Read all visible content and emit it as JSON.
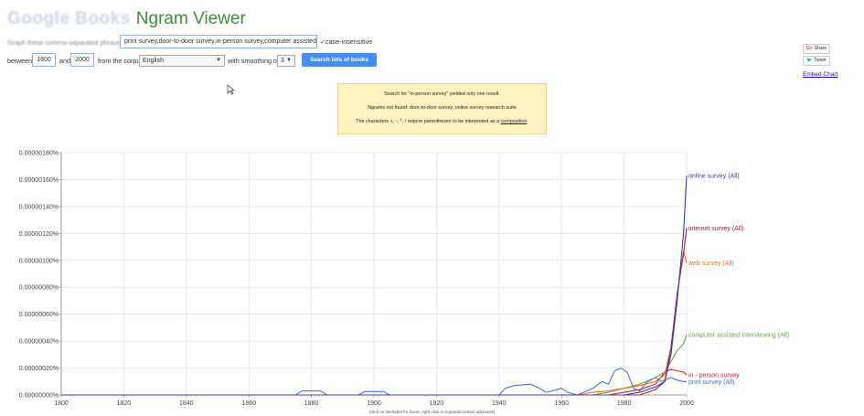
{
  "header": {
    "brand": "Google Books",
    "title": "Ngram Viewer"
  },
  "form": {
    "phrases_label": "Graph these comma-separated phrases:",
    "phrases_value": "print survey,door-to-door survey,in-person survey,computer assisted",
    "case_insensitive_label": "case-insensitive",
    "case_insensitive_checked": true,
    "between_label": "between",
    "year_start": "1800",
    "and_label": "and",
    "year_end": "2000",
    "corpus_label": "from the corpus",
    "corpus_value": "English",
    "smoothing_label": "with smoothing of",
    "smoothing_value": "3",
    "search_button": "Search lots of books"
  },
  "share": {
    "gplus": "Share",
    "tweet": "Tweet",
    "embed": "Embed Chart"
  },
  "notice": {
    "line1": "Search for \"in-person survey\" yielded only one result.",
    "line2": "Ngrams not found: door-to-door survey, online survey research suite",
    "line3_prefix": "The characters +, -, *, / require parentheses to be interpreted as a",
    "line3_link": "composition",
    "line3_suffix": "."
  },
  "footnote": "(click on line/label for focus, right click to expand/contract wildcards)",
  "colors": {
    "online": "#3b3bbd",
    "internet": "#a0203b",
    "web": "#ef6d24",
    "computer": "#6ba546",
    "inperson": "#cc2222",
    "print": "#4a73e3",
    "grid": "#e4e4e4",
    "axis": "#888888"
  },
  "chart_data": {
    "type": "line",
    "xlim": [
      1800,
      2000
    ],
    "ylim": [
      0,
      1.8e-08
    ],
    "x_ticks": [
      "1800",
      "1820",
      "1840",
      "1860",
      "1880",
      "1900",
      "1920",
      "1940",
      "1960",
      "1980",
      "2000"
    ],
    "y_ticks": [
      "0.00000000%",
      "0.00000020%",
      "0.00000040%",
      "0.00000060%",
      "0.00000080%",
      "0.00000100%",
      "0.00000120%",
      "0.00000140%",
      "0.00000160%",
      "0.00000180%"
    ],
    "grid": true,
    "series": [
      {
        "name": "online survey (All)",
        "color_key": "online",
        "label_y": 1.63e-08,
        "points": [
          [
            1800,
            0
          ],
          [
            1980,
            0
          ],
          [
            1985,
            2e-10
          ],
          [
            1990,
            6e-10
          ],
          [
            1993,
            1e-09
          ],
          [
            1995,
            3e-09
          ],
          [
            1997,
            7e-09
          ],
          [
            1999,
            1.2e-08
          ],
          [
            2000,
            1.63e-08
          ]
        ]
      },
      {
        "name": "internet survey (All)",
        "color_key": "internet",
        "label_y": 1.24e-08,
        "points": [
          [
            1800,
            0
          ],
          [
            1985,
            0
          ],
          [
            1990,
            4e-10
          ],
          [
            1993,
            1e-09
          ],
          [
            1995,
            3.5e-09
          ],
          [
            1997,
            7.5e-09
          ],
          [
            1999,
            1.05e-08
          ],
          [
            2000,
            1.24e-08
          ]
        ]
      },
      {
        "name": "web survey (All)",
        "color_key": "web",
        "label_y": 9.8e-09,
        "points": [
          [
            1800,
            0
          ],
          [
            1965,
            0
          ],
          [
            1970,
            2e-10
          ],
          [
            1975,
            3e-10
          ],
          [
            1980,
            5e-10
          ],
          [
            1985,
            7e-10
          ],
          [
            1990,
            1e-09
          ],
          [
            1993,
            1.5e-09
          ],
          [
            1995,
            3.5e-09
          ],
          [
            1997,
            7.5e-09
          ],
          [
            1999,
            1.07e-08
          ],
          [
            2000,
            9.8e-09
          ]
        ]
      },
      {
        "name": "computer assisted interviewing (All)",
        "color_key": "computer",
        "label_y": 4.5e-09,
        "points": [
          [
            1800,
            0
          ],
          [
            1970,
            0
          ],
          [
            1975,
            2e-10
          ],
          [
            1980,
            5e-10
          ],
          [
            1985,
            8e-10
          ],
          [
            1990,
            1.3e-09
          ],
          [
            1993,
            1.7e-09
          ],
          [
            1995,
            2.5e-09
          ],
          [
            1997,
            3.3e-09
          ],
          [
            1999,
            3.8e-09
          ],
          [
            2000,
            4.5e-09
          ]
        ]
      },
      {
        "name": "in - person survey",
        "color_key": "inperson",
        "label_y": 1.5e-09,
        "points": [
          [
            1800,
            0
          ],
          [
            1975,
            0
          ],
          [
            1980,
            2e-10
          ],
          [
            1985,
            4e-10
          ],
          [
            1990,
            8e-10
          ],
          [
            1993,
            1.7e-09
          ],
          [
            1995,
            1.9e-09
          ],
          [
            1997,
            1.8e-09
          ],
          [
            1999,
            1.7e-09
          ],
          [
            2000,
            1.5e-09
          ]
        ]
      },
      {
        "name": "print survey (All)",
        "color_key": "print",
        "label_y": 1e-09,
        "points": [
          [
            1800,
            0
          ],
          [
            1875,
            0
          ],
          [
            1877,
            3e-10
          ],
          [
            1883,
            3e-10
          ],
          [
            1885,
            0
          ],
          [
            1895,
            0
          ],
          [
            1897,
            2.5e-10
          ],
          [
            1903,
            2.5e-10
          ],
          [
            1905,
            0
          ],
          [
            1940,
            0
          ],
          [
            1942,
            5e-10
          ],
          [
            1945,
            7e-10
          ],
          [
            1950,
            8e-10
          ],
          [
            1953,
            5e-10
          ],
          [
            1955,
            2e-10
          ],
          [
            1957,
            3e-10
          ],
          [
            1960,
            5e-10
          ],
          [
            1962,
            2e-10
          ],
          [
            1965,
            0
          ],
          [
            1968,
            3e-10
          ],
          [
            1970,
            5e-10
          ],
          [
            1973,
            1e-09
          ],
          [
            1975,
            8e-10
          ],
          [
            1977,
            1.8e-09
          ],
          [
            1979,
            2e-09
          ],
          [
            1981,
            1.7e-09
          ],
          [
            1983,
            5e-10
          ],
          [
            1985,
            3e-10
          ],
          [
            1987,
            9e-10
          ],
          [
            1990,
            1.3e-09
          ],
          [
            1992,
            1e-09
          ],
          [
            1995,
            1.3e-09
          ],
          [
            1997,
            1.1e-09
          ],
          [
            1999,
            1e-09
          ],
          [
            2000,
            1e-09
          ]
        ]
      }
    ]
  }
}
